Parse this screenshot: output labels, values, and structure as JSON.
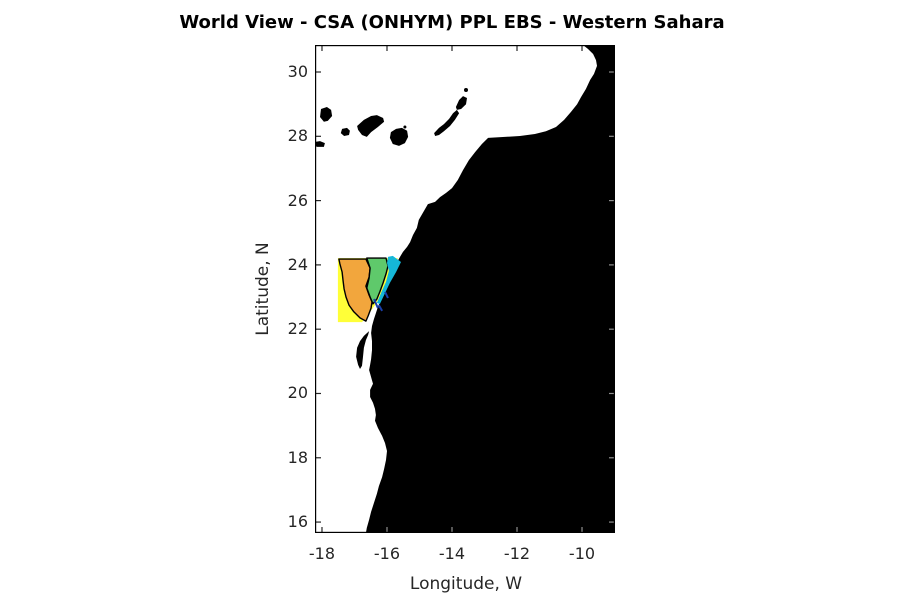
{
  "title": "World View - CSA (ONHYM) PPL EBS  - Western Sahara",
  "axes": {
    "xlabel": "Longitude, W",
    "ylabel": "Latitude, N",
    "xticks": [
      -18,
      -16,
      -14,
      -12,
      -10
    ],
    "yticks": [
      30,
      28,
      26,
      24,
      22,
      20,
      18,
      16
    ],
    "xlim": [
      -18.215,
      -8.985
    ],
    "ylim": [
      15.66,
      30.84
    ]
  },
  "chart_data": {
    "type": "map",
    "region": "Northwest African coast (Morocco / Western Sahara / Mauritania) with Canary Islands",
    "land_color": "#000000",
    "sea_color": "#ffffff",
    "mainland": [
      [
        -9.97,
        30.84
      ],
      [
        -9.82,
        30.72
      ],
      [
        -9.66,
        30.56
      ],
      [
        -9.57,
        30.37
      ],
      [
        -9.54,
        30.19
      ],
      [
        -9.63,
        29.94
      ],
      [
        -9.75,
        29.75
      ],
      [
        -9.88,
        29.47
      ],
      [
        -10.03,
        29.22
      ],
      [
        -10.15,
        29.0
      ],
      [
        -10.34,
        28.76
      ],
      [
        -10.55,
        28.51
      ],
      [
        -10.8,
        28.29
      ],
      [
        -11.11,
        28.16
      ],
      [
        -11.45,
        28.07
      ],
      [
        -11.91,
        28.01
      ],
      [
        -12.37,
        27.98
      ],
      [
        -12.89,
        27.95
      ],
      [
        -13.08,
        27.76
      ],
      [
        -13.29,
        27.51
      ],
      [
        -13.48,
        27.26
      ],
      [
        -13.66,
        26.95
      ],
      [
        -13.82,
        26.64
      ],
      [
        -14.0,
        26.39
      ],
      [
        -14.18,
        26.24
      ],
      [
        -14.37,
        26.11
      ],
      [
        -14.52,
        25.96
      ],
      [
        -14.74,
        25.89
      ],
      [
        -14.86,
        25.68
      ],
      [
        -15.02,
        25.4
      ],
      [
        -15.08,
        25.15
      ],
      [
        -15.2,
        24.93
      ],
      [
        -15.29,
        24.71
      ],
      [
        -15.38,
        24.56
      ],
      [
        -15.51,
        24.4
      ],
      [
        -15.6,
        24.25
      ],
      [
        -15.72,
        24.03
      ],
      [
        -15.82,
        23.81
      ],
      [
        -15.91,
        23.59
      ],
      [
        -16.0,
        23.37
      ],
      [
        -16.09,
        23.16
      ],
      [
        -16.18,
        22.94
      ],
      [
        -16.28,
        22.69
      ],
      [
        -16.34,
        22.5
      ],
      [
        -16.4,
        22.32
      ],
      [
        -16.46,
        22.1
      ],
      [
        -16.49,
        21.88
      ],
      [
        -16.46,
        21.63
      ],
      [
        -16.46,
        21.35
      ],
      [
        -16.49,
        21.07
      ],
      [
        -16.52,
        20.89
      ],
      [
        -16.55,
        20.73
      ],
      [
        -16.49,
        20.51
      ],
      [
        -16.43,
        20.3
      ],
      [
        -16.52,
        20.11
      ],
      [
        -16.52,
        19.89
      ],
      [
        -16.43,
        19.71
      ],
      [
        -16.37,
        19.52
      ],
      [
        -16.34,
        19.33
      ],
      [
        -16.37,
        19.15
      ],
      [
        -16.28,
        18.93
      ],
      [
        -16.15,
        18.68
      ],
      [
        -16.06,
        18.46
      ],
      [
        -16.0,
        18.21
      ],
      [
        -16.03,
        17.93
      ],
      [
        -16.09,
        17.65
      ],
      [
        -16.15,
        17.4
      ],
      [
        -16.25,
        17.12
      ],
      [
        -16.31,
        16.88
      ],
      [
        -16.4,
        16.6
      ],
      [
        -16.49,
        16.32
      ],
      [
        -16.55,
        16.07
      ],
      [
        -16.62,
        15.82
      ],
      [
        -16.65,
        15.66
      ],
      [
        -8.98,
        15.66
      ],
      [
        -8.98,
        30.84
      ]
    ],
    "cap_blanc_peninsula": [
      [
        -16.55,
        21.94
      ],
      [
        -16.71,
        21.79
      ],
      [
        -16.83,
        21.63
      ],
      [
        -16.92,
        21.42
      ],
      [
        -16.95,
        21.14
      ],
      [
        -16.89,
        20.89
      ],
      [
        -16.83,
        20.76
      ],
      [
        -16.77,
        20.86
      ],
      [
        -16.74,
        21.11
      ],
      [
        -16.71,
        21.42
      ],
      [
        -16.65,
        21.66
      ],
      [
        -16.58,
        21.82
      ]
    ],
    "dakhla_spit": [
      [
        -15.57,
        24.12
      ],
      [
        -15.72,
        23.81
      ],
      [
        -15.88,
        23.5
      ],
      [
        -16.0,
        23.22
      ],
      [
        -16.06,
        23.31
      ],
      [
        -15.91,
        23.62
      ],
      [
        -15.75,
        23.93
      ],
      [
        -15.63,
        24.18
      ]
    ],
    "islands": [
      {
        "name": "la-palma",
        "points": [
          [
            -18.03,
            28.85
          ],
          [
            -17.85,
            28.91
          ],
          [
            -17.72,
            28.82
          ],
          [
            -17.69,
            28.63
          ],
          [
            -17.82,
            28.48
          ],
          [
            -17.94,
            28.45
          ],
          [
            -18.06,
            28.6
          ]
        ]
      },
      {
        "name": "el-hierro",
        "points": [
          [
            -18.25,
            27.82
          ],
          [
            -18.06,
            27.85
          ],
          [
            -17.91,
            27.79
          ],
          [
            -17.94,
            27.67
          ],
          [
            -18.15,
            27.67
          ],
          [
            -18.28,
            27.73
          ]
        ]
      },
      {
        "name": "la-gomera",
        "points": [
          [
            -17.38,
            28.23
          ],
          [
            -17.23,
            28.26
          ],
          [
            -17.14,
            28.17
          ],
          [
            -17.17,
            28.04
          ],
          [
            -17.32,
            28.01
          ],
          [
            -17.42,
            28.1
          ]
        ]
      },
      {
        "name": "tenerife",
        "points": [
          [
            -16.92,
            28.32
          ],
          [
            -16.71,
            28.51
          ],
          [
            -16.49,
            28.63
          ],
          [
            -16.31,
            28.66
          ],
          [
            -16.12,
            28.57
          ],
          [
            -16.09,
            28.45
          ],
          [
            -16.28,
            28.29
          ],
          [
            -16.49,
            28.13
          ],
          [
            -16.62,
            27.98
          ],
          [
            -16.77,
            28.04
          ],
          [
            -16.89,
            28.2
          ]
        ]
      },
      {
        "name": "gran-canaria",
        "points": [
          [
            -15.88,
            28.13
          ],
          [
            -15.72,
            28.23
          ],
          [
            -15.54,
            28.26
          ],
          [
            -15.38,
            28.17
          ],
          [
            -15.35,
            27.98
          ],
          [
            -15.45,
            27.79
          ],
          [
            -15.63,
            27.7
          ],
          [
            -15.82,
            27.76
          ],
          [
            -15.91,
            27.95
          ]
        ]
      },
      {
        "name": "fuerteventura",
        "points": [
          [
            -14.55,
            28.1
          ],
          [
            -14.4,
            28.26
          ],
          [
            -14.25,
            28.38
          ],
          [
            -14.09,
            28.54
          ],
          [
            -13.97,
            28.72
          ],
          [
            -13.85,
            28.82
          ],
          [
            -13.78,
            28.72
          ],
          [
            -13.91,
            28.51
          ],
          [
            -14.06,
            28.32
          ],
          [
            -14.25,
            28.16
          ],
          [
            -14.4,
            28.04
          ],
          [
            -14.52,
            28.01
          ]
        ]
      },
      {
        "name": "lanzarote",
        "points": [
          [
            -13.88,
            28.91
          ],
          [
            -13.78,
            29.13
          ],
          [
            -13.66,
            29.25
          ],
          [
            -13.54,
            29.19
          ],
          [
            -13.57,
            29.0
          ],
          [
            -13.72,
            28.85
          ],
          [
            -13.85,
            28.82
          ]
        ]
      }
    ],
    "islet_dots": [
      {
        "name": "alegranza",
        "lonlat": [
          -13.57,
          29.44
        ],
        "r": 2
      },
      {
        "name": "isleta-gran-canaria",
        "lonlat": [
          -15.45,
          28.29
        ],
        "r": 1.5
      }
    ],
    "license_blocks": [
      {
        "name": "outer-yellow-block",
        "color": "#FFFF38",
        "outline": "none",
        "points": [
          [
            -17.51,
            24.21
          ],
          [
            -15.66,
            24.21
          ],
          [
            -15.85,
            23.78
          ],
          [
            -16.09,
            23.22
          ],
          [
            -16.37,
            22.75
          ],
          [
            -16.65,
            22.35
          ],
          [
            -16.77,
            22.22
          ],
          [
            -17.51,
            22.22
          ]
        ]
      },
      {
        "name": "mid-orange-block",
        "color": "#F2A63D",
        "outline": "#000000",
        "points": [
          [
            -17.48,
            24.18
          ],
          [
            -16.65,
            24.18
          ],
          [
            -16.52,
            23.9
          ],
          [
            -16.55,
            23.62
          ],
          [
            -16.65,
            23.34
          ],
          [
            -16.55,
            23.06
          ],
          [
            -16.46,
            22.85
          ],
          [
            -16.49,
            22.66
          ],
          [
            -16.58,
            22.41
          ],
          [
            -16.65,
            22.25
          ],
          [
            -16.83,
            22.35
          ],
          [
            -17.02,
            22.54
          ],
          [
            -17.17,
            22.75
          ],
          [
            -17.26,
            23.0
          ],
          [
            -17.32,
            23.25
          ],
          [
            -17.35,
            23.5
          ],
          [
            -17.38,
            23.78
          ],
          [
            -17.45,
            24.03
          ]
        ]
      },
      {
        "name": "inner-green-block",
        "color": "#5FC96B",
        "outline": "#000000",
        "points": [
          [
            -16.62,
            24.21
          ],
          [
            -16.03,
            24.21
          ],
          [
            -15.97,
            23.97
          ],
          [
            -16.03,
            23.72
          ],
          [
            -16.12,
            23.44
          ],
          [
            -16.22,
            23.16
          ],
          [
            -16.31,
            22.94
          ],
          [
            -16.43,
            22.79
          ],
          [
            -16.52,
            23.0
          ],
          [
            -16.62,
            23.28
          ],
          [
            -16.55,
            23.59
          ],
          [
            -16.52,
            23.9
          ]
        ]
      },
      {
        "name": "coastal-cyan-strip",
        "color": "#15B7D8",
        "outline": "none",
        "points": [
          [
            -15.97,
            24.25
          ],
          [
            -15.82,
            24.28
          ],
          [
            -15.57,
            24.09
          ],
          [
            -15.72,
            23.78
          ],
          [
            -15.91,
            23.44
          ],
          [
            -16.09,
            23.06
          ],
          [
            -16.22,
            22.78
          ],
          [
            -16.31,
            22.82
          ],
          [
            -16.18,
            23.13
          ],
          [
            -16.03,
            23.47
          ],
          [
            -15.94,
            23.81
          ],
          [
            -16.0,
            24.06
          ]
        ]
      }
    ],
    "navy_dashes": {
      "color": "#1A3EA8",
      "segments": [
        [
          [
            -16.4,
            22.94
          ],
          [
            -16.28,
            22.66
          ]
        ],
        [
          [
            -16.06,
            23.16
          ],
          [
            -15.97,
            22.97
          ]
        ],
        [
          [
            -16.25,
            22.75
          ],
          [
            -16.15,
            22.57
          ]
        ]
      ]
    }
  }
}
